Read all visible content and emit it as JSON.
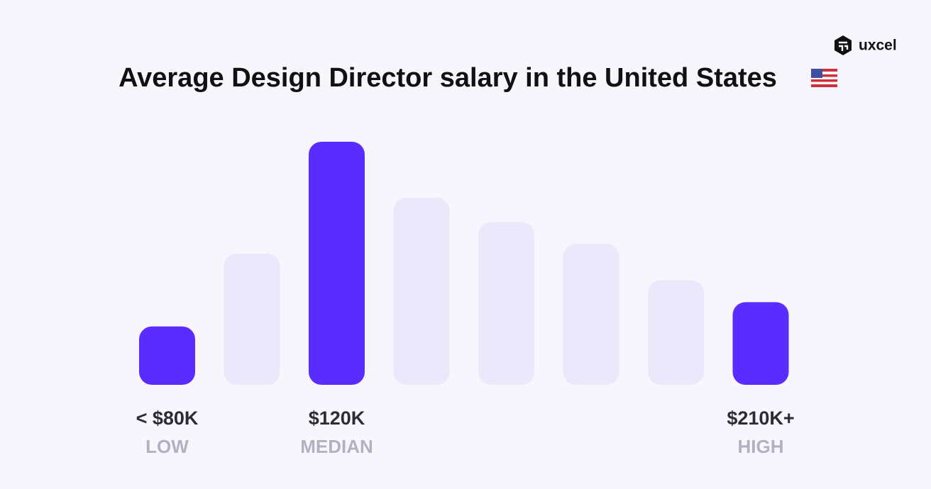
{
  "chart_data": {
    "type": "bar",
    "title": "Average Design Director salary in the United States",
    "brand": "uxcel",
    "categories": [
      "< $80K",
      null,
      "$120K",
      null,
      null,
      null,
      null,
      "$210K+"
    ],
    "sublabels": [
      "LOW",
      null,
      "MEDIAN",
      null,
      null,
      null,
      null,
      "HIGH"
    ],
    "values": [
      24,
      54,
      100,
      77,
      67,
      58,
      43,
      34
    ],
    "colors": [
      "#5b2cff",
      "#ece8fb",
      "#5b2cff",
      "#ece8fb",
      "#ece8fb",
      "#ece8fb",
      "#ece8fb",
      "#5b2cff"
    ]
  }
}
